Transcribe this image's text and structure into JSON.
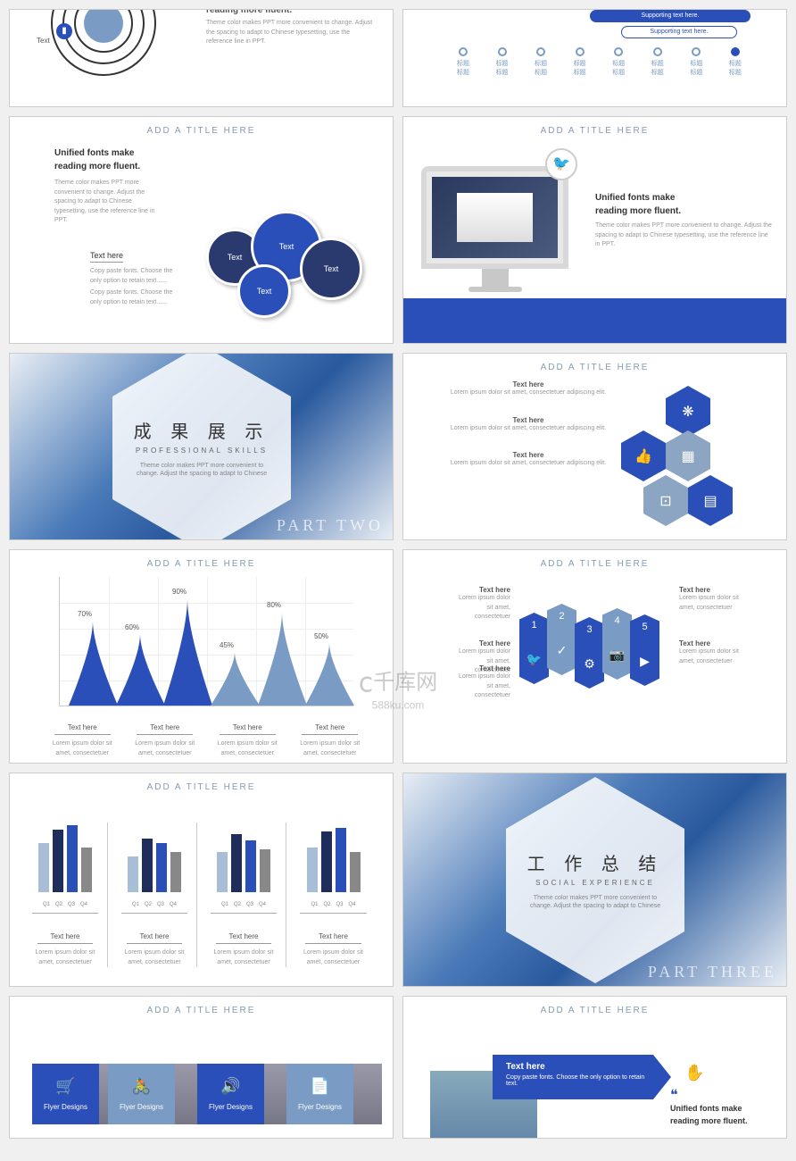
{
  "common": {
    "title": "ADD A TITLE HERE",
    "unified_h": "Unified fonts make",
    "unified_h2": "reading more fluent.",
    "theme_desc": "Theme color makes PPT more convenient to change. Adjust the spacing to adapt to Chinese typesetting, use the reference line in PPT.",
    "text_here": "Text here",
    "lorem": "Lorem ipsum dolor sit amet, consectetuer adipiscing elit.",
    "lorem_short": "Lorem ipsum dolor sit amet, consectetuer",
    "copy_paste": "Copy paste fonts. Choose the only option to retain text......",
    "text": "Text"
  },
  "colors": {
    "primary": "#2b4fb8",
    "dark_navy": "#1e2d5c",
    "light_blue": "#7a9bc4",
    "lighter_blue": "#a8bdd6",
    "gray": "#888888"
  },
  "slide1": {
    "label": "Text"
  },
  "slide2": {
    "pill1": "Supporting text here.",
    "pill2": "Supporting text here.",
    "markers": [
      "标题",
      "标题",
      "标题",
      "标题",
      "标题",
      "标题",
      "标题",
      "标题"
    ]
  },
  "slide3": {
    "bubbles": [
      "Text",
      "Text",
      "Text",
      "Text"
    ],
    "bubble_colors": [
      "#2a3a6e",
      "#2b4fb8",
      "#2a3a6e",
      "#2b4fb8"
    ]
  },
  "slide5": {
    "title": "成 果 展 示",
    "sub": "PROFESSIONAL SKILLS",
    "desc": "Theme color makes PPT more convenient to change. Adjust the spacing to adapt to Chinese",
    "part": "PART TWO"
  },
  "slide6": {
    "hex_colors": [
      "#2b4fb8",
      "#2b4fb8",
      "#8ca5c2",
      "#8ca5c2",
      "#2b4fb8"
    ],
    "hex_icons": [
      "❋",
      "👍",
      "▦",
      "⊡",
      "▤"
    ]
  },
  "slide7": {
    "peaks": [
      {
        "label": "70%",
        "h": 95,
        "c": "#2b4fb8"
      },
      {
        "label": "60%",
        "h": 80,
        "c": "#2b4fb8"
      },
      {
        "label": "90%",
        "h": 120,
        "c": "#2b4fb8"
      },
      {
        "label": "45%",
        "h": 60,
        "c": "#7a9bc4"
      },
      {
        "label": "80%",
        "h": 105,
        "c": "#7a9bc4"
      },
      {
        "label": "50%",
        "h": 70,
        "c": "#7a9bc4"
      }
    ],
    "labels": [
      "Text here",
      "Text here",
      "Text here",
      "Text here"
    ]
  },
  "slide8": {
    "items": [
      "1",
      "2",
      "3",
      "4",
      "5"
    ],
    "item_colors": [
      "#2b4fb8",
      "#7a9bc4",
      "#2b4fb8",
      "#7a9bc4",
      "#2b4fb8"
    ],
    "icons": [
      "🐦",
      "✓",
      "⚙",
      "📷",
      "▶"
    ]
  },
  "slide9": {
    "charts": [
      {
        "bars": [
          55,
          70,
          75,
          50
        ],
        "colors": [
          "#a8bdd6",
          "#1e2d5c",
          "#2b4fb8",
          "#888"
        ]
      },
      {
        "bars": [
          40,
          60,
          55,
          45
        ],
        "colors": [
          "#a8bdd6",
          "#1e2d5c",
          "#2b4fb8",
          "#888"
        ]
      },
      {
        "bars": [
          45,
          65,
          58,
          48
        ],
        "colors": [
          "#a8bdd6",
          "#1e2d5c",
          "#2b4fb8",
          "#888"
        ]
      },
      {
        "bars": [
          50,
          68,
          72,
          45
        ],
        "colors": [
          "#a8bdd6",
          "#1e2d5c",
          "#2b4fb8",
          "#888"
        ]
      }
    ],
    "q": [
      "Q1",
      "Q2",
      "Q3",
      "Q4"
    ]
  },
  "slide10": {
    "title": "工 作 总 结",
    "sub": "SOCIAL EXPERIENCE",
    "desc": "Theme color makes PPT more convenient to change. Adjust the spacing to adapt to Chinese",
    "part": "PART THREE"
  },
  "slide11": {
    "label": "Flyer Designs",
    "icons": [
      "🛒",
      "🚴",
      "🔊",
      "📄"
    ]
  },
  "slide12": {
    "arrow_label": "Text here",
    "arrow_desc": "Copy paste fonts. Choose the only option to retain text.",
    "icon": "✋"
  },
  "watermark": {
    "main": "千库网",
    "sub": "588ku.com",
    "logo": "ⅽ"
  }
}
